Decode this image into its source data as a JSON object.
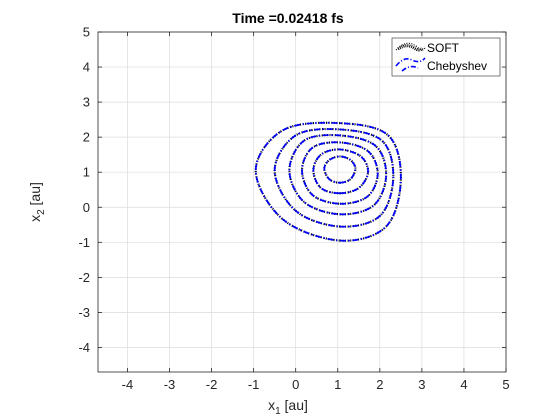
{
  "chart_data": {
    "type": "line",
    "title": "Time =0.02418 fs",
    "xlabel": {
      "main": "x",
      "sub": "1",
      "unit": " [au]"
    },
    "ylabel": {
      "main": "x",
      "sub": "2",
      "unit": " [au]"
    },
    "xlim": [
      -4.7,
      5
    ],
    "ylim": [
      -4.7,
      5
    ],
    "xticks": [
      -4,
      -3,
      -2,
      -1,
      0,
      1,
      2,
      3,
      4,
      5
    ],
    "yticks": [
      -4,
      -3,
      -2,
      -1,
      0,
      1,
      2,
      3,
      4,
      5
    ],
    "grid": true,
    "legend": {
      "position": "top-right",
      "entries": [
        {
          "label": "SOFT",
          "color": "#000000",
          "style": "dotted"
        },
        {
          "label": "Chebyshev",
          "color": "#0000ff",
          "style": "dash-dot"
        }
      ]
    },
    "contour_center": [
      1.05,
      1.1
    ],
    "series": [
      {
        "name": "SOFT",
        "color": "#000000",
        "contours": [
          {
            "level": 1,
            "points": [
              [
                1.05,
                0.7
              ],
              [
                1.3,
                0.8
              ],
              [
                1.42,
                1.1
              ],
              [
                1.3,
                1.35
              ],
              [
                1.05,
                1.45
              ],
              [
                0.8,
                1.35
              ],
              [
                0.68,
                1.1
              ],
              [
                0.8,
                0.8
              ]
            ]
          },
          {
            "level": 2,
            "points": [
              [
                1.05,
                0.4
              ],
              [
                1.5,
                0.55
              ],
              [
                1.72,
                1.0
              ],
              [
                1.55,
                1.45
              ],
              [
                1.05,
                1.65
              ],
              [
                0.6,
                1.5
              ],
              [
                0.42,
                1.05
              ],
              [
                0.6,
                0.55
              ]
            ]
          },
          {
            "level": 3,
            "points": [
              [
                1.05,
                0.1
              ],
              [
                1.7,
                0.3
              ],
              [
                1.95,
                0.95
              ],
              [
                1.72,
                1.6
              ],
              [
                1.05,
                1.85
              ],
              [
                0.4,
                1.7
              ],
              [
                0.15,
                1.05
              ],
              [
                0.4,
                0.35
              ]
            ]
          },
          {
            "level": 4,
            "points": [
              [
                1.05,
                -0.2
              ],
              [
                1.85,
                0.05
              ],
              [
                2.15,
                0.9
              ],
              [
                1.9,
                1.75
              ],
              [
                1.05,
                2.05
              ],
              [
                0.2,
                1.9
              ],
              [
                -0.15,
                1.05
              ],
              [
                0.2,
                0.15
              ]
            ]
          },
          {
            "level": 5,
            "points": [
              [
                1.05,
                -0.55
              ],
              [
                2.0,
                -0.25
              ],
              [
                2.32,
                0.85
              ],
              [
                2.05,
                1.9
              ],
              [
                1.05,
                2.22
              ],
              [
                0.0,
                2.05
              ],
              [
                -0.5,
                1.05
              ],
              [
                0.0,
                -0.1
              ]
            ]
          },
          {
            "level": 6,
            "points": [
              [
                1.05,
                -0.95
              ],
              [
                2.15,
                -0.55
              ],
              [
                2.5,
                0.8
              ],
              [
                2.2,
                2.05
              ],
              [
                1.05,
                2.4
              ],
              [
                -0.3,
                2.2
              ],
              [
                -0.95,
                1.05
              ],
              [
                -0.3,
                -0.35
              ]
            ]
          }
        ]
      },
      {
        "name": "Chebyshev",
        "color": "#0000ff",
        "contours": [
          {
            "level": 1,
            "points": [
              [
                1.05,
                0.7
              ],
              [
                1.3,
                0.8
              ],
              [
                1.42,
                1.1
              ],
              [
                1.3,
                1.35
              ],
              [
                1.05,
                1.45
              ],
              [
                0.8,
                1.35
              ],
              [
                0.68,
                1.1
              ],
              [
                0.8,
                0.8
              ]
            ]
          },
          {
            "level": 2,
            "points": [
              [
                1.05,
                0.4
              ],
              [
                1.5,
                0.55
              ],
              [
                1.72,
                1.0
              ],
              [
                1.55,
                1.45
              ],
              [
                1.05,
                1.65
              ],
              [
                0.6,
                1.5
              ],
              [
                0.42,
                1.05
              ],
              [
                0.6,
                0.55
              ]
            ]
          },
          {
            "level": 3,
            "points": [
              [
                1.05,
                0.1
              ],
              [
                1.7,
                0.3
              ],
              [
                1.95,
                0.95
              ],
              [
                1.72,
                1.6
              ],
              [
                1.05,
                1.85
              ],
              [
                0.4,
                1.7
              ],
              [
                0.15,
                1.05
              ],
              [
                0.4,
                0.35
              ]
            ]
          },
          {
            "level": 4,
            "points": [
              [
                1.05,
                -0.2
              ],
              [
                1.85,
                0.05
              ],
              [
                2.15,
                0.9
              ],
              [
                1.9,
                1.75
              ],
              [
                1.05,
                2.05
              ],
              [
                0.2,
                1.9
              ],
              [
                -0.15,
                1.05
              ],
              [
                0.2,
                0.15
              ]
            ]
          },
          {
            "level": 5,
            "points": [
              [
                1.05,
                -0.55
              ],
              [
                2.0,
                -0.25
              ],
              [
                2.32,
                0.85
              ],
              [
                2.05,
                1.9
              ],
              [
                1.05,
                2.22
              ],
              [
                0.0,
                2.05
              ],
              [
                -0.5,
                1.05
              ],
              [
                0.0,
                -0.1
              ]
            ]
          },
          {
            "level": 6,
            "points": [
              [
                1.05,
                -0.95
              ],
              [
                2.15,
                -0.55
              ],
              [
                2.5,
                0.8
              ],
              [
                2.2,
                2.05
              ],
              [
                1.05,
                2.4
              ],
              [
                -0.3,
                2.2
              ],
              [
                -0.95,
                1.05
              ],
              [
                -0.3,
                -0.35
              ]
            ]
          }
        ]
      }
    ]
  }
}
